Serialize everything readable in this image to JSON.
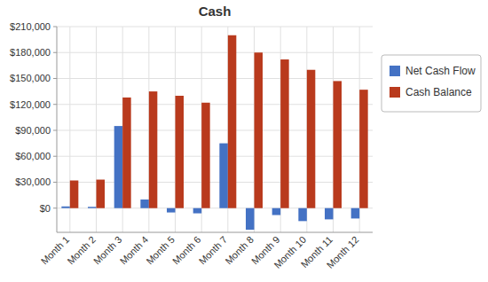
{
  "chart_data": {
    "type": "bar",
    "title": "Cash",
    "categories": [
      "Month 1",
      "Month 2",
      "Month 3",
      "Month 4",
      "Month 5",
      "Month 6",
      "Month 7",
      "Month 8",
      "Month 9",
      "Month 10",
      "Month 11",
      "Month 12"
    ],
    "series": [
      {
        "name": "Net Cash Flow",
        "color": "#4472C4",
        "values": [
          2000,
          1500,
          95000,
          10000,
          -5000,
          -6000,
          75000,
          -25000,
          -8000,
          -15000,
          -13000,
          -12000
        ]
      },
      {
        "name": "Cash Balance",
        "color": "#B93A1D",
        "values": [
          32000,
          33000,
          128000,
          135000,
          130000,
          122000,
          200000,
          180000,
          172000,
          160000,
          147000,
          137000
        ]
      }
    ],
    "ylim": [
      -28000,
      210000
    ],
    "yticks": [
      {
        "value": 0,
        "label": "$0"
      },
      {
        "value": 30000,
        "label": "$30,000"
      },
      {
        "value": 60000,
        "label": "$60,000"
      },
      {
        "value": 90000,
        "label": "$90,000"
      },
      {
        "value": 120000,
        "label": "$120,000"
      },
      {
        "value": 150000,
        "label": "$150,000"
      },
      {
        "value": 180000,
        "label": "$180,000"
      },
      {
        "value": 210000,
        "label": "$210,000"
      }
    ],
    "grid": true,
    "legend": "right"
  }
}
